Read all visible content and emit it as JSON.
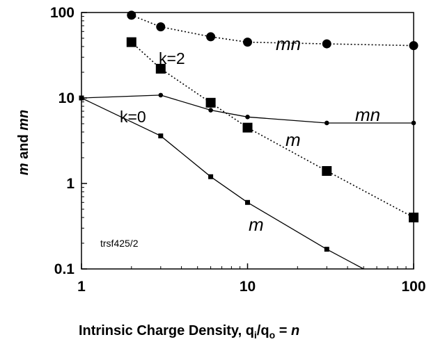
{
  "chart_data": {
    "type": "line",
    "x_scale": "log",
    "y_scale": "log",
    "xlim": [
      1,
      100
    ],
    "ylim": [
      0.1,
      100
    ],
    "x_ticks": [
      "1",
      "10",
      "100"
    ],
    "y_ticks": [
      "0.1",
      "1",
      "10",
      "100"
    ],
    "xlabel_main": "Intrinsic Charge Density, q",
    "xlabel_sub_i": "i",
    "xlabel_slash": "/q",
    "xlabel_sub_o": "o",
    "xlabel_eq": " = ",
    "xlabel_var": "n",
    "ylabel_m1": "m",
    "ylabel_and": " and ",
    "ylabel_mn": "mn",
    "series": [
      {
        "id": "k0_m",
        "marker": "small-square",
        "style": "solid",
        "x": [
          1,
          3,
          6,
          10,
          30,
          50
        ],
        "y": [
          10,
          3.6,
          1.2,
          0.6,
          0.17,
          0.1
        ]
      },
      {
        "id": "k0_mn",
        "marker": "small-circle",
        "style": "solid",
        "x": [
          1,
          3,
          6,
          10,
          30,
          100
        ],
        "y": [
          10,
          10.8,
          7.2,
          6,
          5.1,
          5.1
        ]
      },
      {
        "id": "k2_m",
        "marker": "large-square",
        "style": "dotted",
        "x": [
          2,
          3,
          6,
          10,
          30,
          100
        ],
        "y": [
          45,
          22,
          8.8,
          4.5,
          1.4,
          0.4
        ]
      },
      {
        "id": "k2_mn",
        "marker": "large-circle",
        "style": "dotted",
        "x": [
          2,
          3,
          6,
          10,
          30,
          100
        ],
        "y": [
          93,
          68,
          52,
          45,
          43,
          41
        ]
      }
    ],
    "annotations": {
      "k2": "k=2",
      "k0": "k=0",
      "mn_upper": "mn",
      "mn_lower": "mn",
      "m_upper": "m",
      "m_lower": "m",
      "tag": "trsf425/2"
    }
  }
}
